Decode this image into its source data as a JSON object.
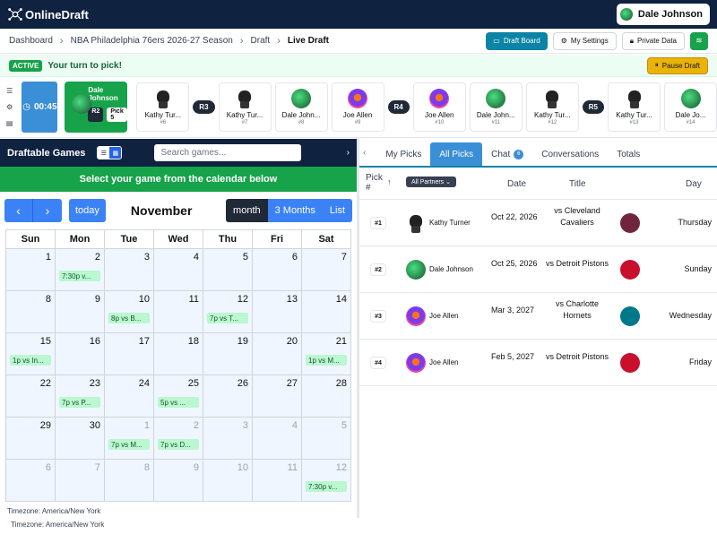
{
  "app": {
    "logo_text": "OnlineDraft",
    "user_name": "Dale Johnson"
  },
  "breadcrumb": {
    "items": [
      "Dashboard",
      "NBA Philadelphia 76ers 2026-27 Season",
      "Draft",
      "Live Draft"
    ],
    "separator": "›"
  },
  "actions": {
    "draft_board": "Draft Board",
    "my_settings": "My Settings",
    "private_data": "Private Data"
  },
  "status": {
    "badge": "ACTIVE",
    "message": "Your turn to pick!",
    "pause": "Pause Draft"
  },
  "timer": {
    "value": "00:45"
  },
  "on_clock": {
    "name": "Dale Johnson",
    "round": "R2",
    "pick": "Pick 5"
  },
  "pick_strip": [
    {
      "type": "pick",
      "name": "Kathy Tur...",
      "num": "#6",
      "avatar": "dog"
    },
    {
      "type": "round",
      "label": "R3"
    },
    {
      "type": "pick",
      "name": "Kathy Tur...",
      "num": "#7",
      "avatar": "dog"
    },
    {
      "type": "pick",
      "name": "Dale John...",
      "num": "#8",
      "avatar": "green"
    },
    {
      "type": "pick",
      "name": "Joe Allen",
      "num": "#9",
      "avatar": "clown"
    },
    {
      "type": "round",
      "label": "R4"
    },
    {
      "type": "pick",
      "name": "Joe Allen",
      "num": "#10",
      "avatar": "clown"
    },
    {
      "type": "pick",
      "name": "Dale John...",
      "num": "#11",
      "avatar": "green"
    },
    {
      "type": "pick",
      "name": "Kathy Tur...",
      "num": "#12",
      "avatar": "dog"
    },
    {
      "type": "round",
      "label": "R5"
    },
    {
      "type": "pick",
      "name": "Kathy Tur...",
      "num": "#13",
      "avatar": "dog"
    },
    {
      "type": "pick",
      "name": "Dale Jo...",
      "num": "#14",
      "avatar": "green"
    }
  ],
  "left": {
    "title": "Draftable Games",
    "search_placeholder": "Search games...",
    "select_banner": "Select your game from the calendar below",
    "calendar": {
      "today": "today",
      "month_title": "November",
      "views": [
        "month",
        "3 Months",
        "List"
      ],
      "selected_view": "month",
      "dow": [
        "Sun",
        "Mon",
        "Tue",
        "Wed",
        "Thu",
        "Fri",
        "Sat"
      ],
      "weeks": [
        [
          {
            "d": "1"
          },
          {
            "d": "2",
            "e": "7:30p v..."
          },
          {
            "d": "3"
          },
          {
            "d": "4"
          },
          {
            "d": "5"
          },
          {
            "d": "6"
          },
          {
            "d": "7"
          }
        ],
        [
          {
            "d": "8"
          },
          {
            "d": "9"
          },
          {
            "d": "10",
            "e": "8p vs B..."
          },
          {
            "d": "11"
          },
          {
            "d": "12",
            "e": "7p vs T..."
          },
          {
            "d": "13"
          },
          {
            "d": "14"
          }
        ],
        [
          {
            "d": "15",
            "e": "1p vs In..."
          },
          {
            "d": "16"
          },
          {
            "d": "17"
          },
          {
            "d": "18"
          },
          {
            "d": "19"
          },
          {
            "d": "20"
          },
          {
            "d": "21",
            "e": "1p vs M..."
          }
        ],
        [
          {
            "d": "22"
          },
          {
            "d": "23",
            "e": "7p vs P..."
          },
          {
            "d": "24"
          },
          {
            "d": "25",
            "e": "5p vs ..."
          },
          {
            "d": "26"
          },
          {
            "d": "27"
          },
          {
            "d": "28"
          }
        ],
        [
          {
            "d": "29"
          },
          {
            "d": "30"
          },
          {
            "d": "1",
            "o": true,
            "e": "7p vs M..."
          },
          {
            "d": "2",
            "o": true,
            "e": "7p vs D..."
          },
          {
            "d": "3",
            "o": true
          },
          {
            "d": "4",
            "o": true
          },
          {
            "d": "5",
            "o": true
          }
        ],
        [
          {
            "d": "6",
            "o": true
          },
          {
            "d": "7",
            "o": true
          },
          {
            "d": "8",
            "o": true
          },
          {
            "d": "9",
            "o": true
          },
          {
            "d": "10",
            "o": true
          },
          {
            "d": "11",
            "o": true
          },
          {
            "d": "12",
            "o": true,
            "e": "7:30p v..."
          }
        ]
      ]
    },
    "timezone": "Timezone: America/New York"
  },
  "right": {
    "tabs": [
      {
        "label": "My Picks"
      },
      {
        "label": "All Picks",
        "selected": true
      },
      {
        "label": "Chat",
        "count": "6"
      },
      {
        "label": "Conversations"
      },
      {
        "label": "Totals"
      }
    ],
    "columns": {
      "pick": "Pick #",
      "partners": "All Partners",
      "date": "Date",
      "title": "Title",
      "day": "Day"
    },
    "rows": [
      {
        "pick": "#1",
        "name": "Kathy Turner",
        "avatar": "dog",
        "date": "Oct 22, 2026",
        "title": "vs Cleveland Cavaliers",
        "logo_color": "#6f263d",
        "day": "Thursday"
      },
      {
        "pick": "#2",
        "name": "Dale Johnson",
        "avatar": "green",
        "date": "Oct 25, 2026",
        "title": "vs Detroit Pistons",
        "logo_color": "#c8102e",
        "day": "Sunday"
      },
      {
        "pick": "#3",
        "name": "Joe Allen",
        "avatar": "clown",
        "date": "Mar 3, 2027",
        "title": "vs Charlotte Hornets",
        "logo_color": "#00788c",
        "day": "Wednesday"
      },
      {
        "pick": "#4",
        "name": "Joe Allen",
        "avatar": "clown",
        "date": "Feb 5, 2027",
        "title": "vs Detroit Pistons",
        "logo_color": "#c8102e",
        "day": "Friday"
      }
    ]
  }
}
